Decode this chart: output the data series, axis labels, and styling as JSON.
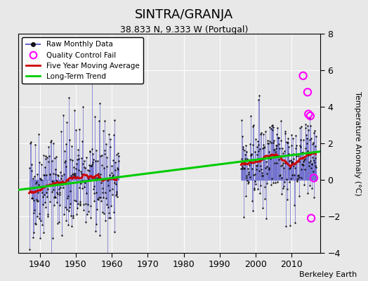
{
  "title": "SINTRA/GRANJA",
  "subtitle": "38.833 N, 9.333 W (Portugal)",
  "ylabel": "Temperature Anomaly (°C)",
  "credit": "Berkeley Earth",
  "xlim": [
    1934,
    2018
  ],
  "ylim": [
    -4,
    8
  ],
  "yticks": [
    -4,
    -2,
    0,
    2,
    4,
    6,
    8
  ],
  "xticks": [
    1940,
    1950,
    1960,
    1970,
    1980,
    1990,
    2000,
    2010
  ],
  "bg_color": "#e8e8e8",
  "raw_line_color": "#6666cc",
  "raw_dot_color": "#111111",
  "qc_color": "#ff00ff",
  "moving_avg_color": "#cc0000",
  "trend_color": "#00cc00",
  "period1_start": 1937,
  "period1_end": 1961,
  "period2_start": 1996,
  "period2_end": 2016,
  "trend_x": [
    1934,
    2018
  ],
  "trend_y": [
    -0.55,
    1.55
  ],
  "qc_x": [
    2013.25,
    2014.5,
    2014.75,
    2015.25,
    2015.5,
    2016.25
  ],
  "qc_y": [
    5.7,
    4.8,
    3.6,
    3.5,
    -2.1,
    0.1
  ]
}
